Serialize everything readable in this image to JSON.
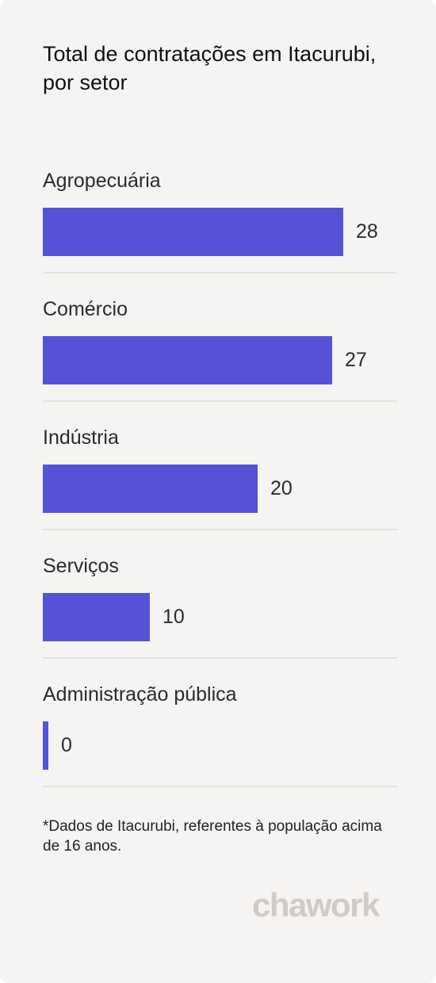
{
  "title": "Total de contratações em Itacurubi, por setor",
  "chart_data": {
    "type": "bar",
    "orientation": "horizontal",
    "categories": [
      "Agropecuária",
      "Comércio",
      "Indústria",
      "Serviços",
      "Administração pública"
    ],
    "values": [
      28,
      27,
      20,
      10,
      0
    ],
    "value_labels": [
      "28",
      "27",
      "20",
      "10",
      "0"
    ],
    "bar_color": "#5552d8"
  },
  "footnote": "*Dados de Itacurubi, referentes à população acima de 16 anos.",
  "brand": "chawork"
}
